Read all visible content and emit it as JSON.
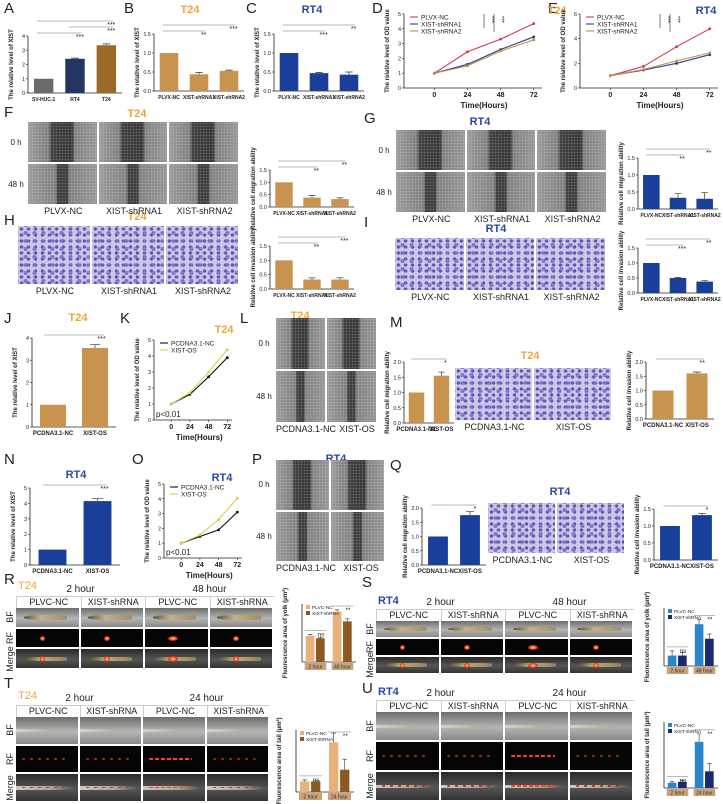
{
  "letters": {
    "A": "A",
    "B": "B",
    "C": "C",
    "D": "D",
    "E": "E",
    "F": "F",
    "G": "G",
    "H": "H",
    "I": "I",
    "J": "J",
    "K": "K",
    "L": "L",
    "M": "M",
    "N": "N",
    "O": "O",
    "P": "P",
    "Q": "Q",
    "R": "R",
    "S": "S",
    "T": "T",
    "U": "U"
  },
  "titles": {
    "B": "T24",
    "C": "RT4",
    "D": "T24",
    "E": "RT4",
    "F": "T24",
    "G": "RT4",
    "H": "T24",
    "I": "RT4",
    "J": "T24",
    "K": "T24",
    "L": "T24",
    "M": "T24",
    "N": "RT4",
    "O": "RT4",
    "P": "RT4",
    "Q": "RT4",
    "R": "T24",
    "S": "RT4",
    "T": "T24",
    "U": "RT4"
  },
  "colors": {
    "t24": "#eda63c",
    "rt4": "#2a48a6"
  },
  "grids": {
    "F": {
      "style": "wound",
      "rows": [
        "0 h",
        "48 h"
      ],
      "cols": [
        "PLVX-NC",
        "XIST-shRNA1",
        "XIST-shRNA2"
      ]
    },
    "G": {
      "style": "wound",
      "rows": [
        "0 h",
        "48 h"
      ],
      "cols": [
        "PLVX-NC",
        "XIST-shRNA1",
        "XIST-shRNA2"
      ]
    },
    "H": {
      "style": "invasion",
      "rows": [
        ""
      ],
      "cols": [
        "PLVX-NC",
        "XIST-shRNA1",
        "XIST-shRNA2"
      ]
    },
    "I": {
      "style": "invasion",
      "rows": [
        ""
      ],
      "cols": [
        "PLVX-NC",
        "XIST-shRNA1",
        "XIST-shRNA2"
      ]
    },
    "L": {
      "style": "wound",
      "rows": [
        "0 h",
        "48 h"
      ],
      "cols": [
        "PCDNA3.1-NC",
        "XIST-OS"
      ]
    },
    "M": {
      "style": "invasion",
      "rows": [
        ""
      ],
      "cols": [
        "PCDNA3.1-NC",
        "XIST-OS"
      ]
    },
    "P": {
      "style": "wound",
      "rows": [
        "0 h",
        "48 h"
      ],
      "cols": [
        "PCDNA3.1-NC",
        "XIST-OS"
      ]
    },
    "Q": {
      "style": "invasion",
      "rows": [
        ""
      ],
      "cols": [
        "PCDNA3.1-NC",
        "XIST-OS"
      ]
    },
    "R": {
      "style": "fish-yolk",
      "groups": [
        "2 hour",
        "48 hour"
      ],
      "cols": [
        "PLVC-NC",
        "XIST-shRNA",
        "PLVC-NC",
        "XIST-shRNA"
      ],
      "rows": [
        "BF",
        "RF",
        "Merge"
      ]
    },
    "S": {
      "style": "fish-yolk",
      "groups": [
        "2 hour",
        "48 hour"
      ],
      "cols": [
        "PLVC-NC",
        "XIST-shRNA",
        "PLVC-NC",
        "XIST-shRNA"
      ],
      "rows": [
        "BF",
        "RF",
        "Merge"
      ]
    },
    "T": {
      "style": "fish-tail",
      "groups": [
        "2 hour",
        "24 hour"
      ],
      "cols": [
        "PLVC-NC",
        "XIST-shRNA",
        "PLVC-NC",
        "XIST-shRNA"
      ],
      "rows": [
        "BF",
        "RF",
        "Merge"
      ]
    },
    "U": {
      "style": "fish-tail",
      "groups": [
        "2 hour",
        "24 hour"
      ],
      "cols": [
        "PLVC-NC",
        "XIST-shRNA",
        "PLVC-NC",
        "XIST-shRNA"
      ],
      "rows": [
        "BF",
        "RF",
        "Merge"
      ]
    }
  },
  "chart_data": [
    {
      "panel": "A",
      "type": "bar",
      "categories": [
        "SV-HUC-1",
        "RT4",
        "T24"
      ],
      "values": [
        1,
        2.4,
        3.35
      ],
      "errors": [
        0,
        0.05,
        0.1
      ],
      "colors": [
        "#6b6b6b",
        "#233562",
        "#9c6a28"
      ],
      "ylabel": "The relative level of XIST",
      "ylim": [
        0,
        4
      ],
      "yticks": [
        "0",
        "1",
        "2",
        "3",
        "4"
      ],
      "sig": [
        {
          "from": 0,
          "to": 1,
          "label": "***"
        },
        {
          "from": 1,
          "to": 2,
          "label": "***"
        },
        {
          "from": 0,
          "to": 2,
          "label": "***"
        }
      ]
    },
    {
      "panel": "B",
      "type": "bar",
      "categories": [
        "PLVX-NC",
        "XIST-shRNA1",
        "XIST-shRNA2"
      ],
      "values": [
        1,
        0.44,
        0.53
      ],
      "errors": [
        0,
        0.05,
        0.02
      ],
      "colors": [
        "#c8924f",
        "#c8924f",
        "#c8924f"
      ],
      "ylabel": "The relative level of XIST",
      "ylim": [
        0,
        1.5
      ],
      "yticks": [
        "0.0",
        "0.5",
        "1.0",
        "1.5"
      ],
      "sig": [
        {
          "from": 0,
          "to": 1,
          "label": "**"
        },
        {
          "from": 0,
          "to": 2,
          "label": "***"
        }
      ]
    },
    {
      "panel": "C",
      "type": "bar",
      "categories": [
        "PLVX-NC",
        "XIST-shRNA1",
        "XIST-shRNA2"
      ],
      "values": [
        1,
        0.47,
        0.43
      ],
      "errors": [
        0,
        0.02,
        0.07
      ],
      "colors": [
        "#1a3f9a",
        "#1a3f9a",
        "#1a3f9a"
      ],
      "ylabel": "The relative level of XIST",
      "ylim": [
        0,
        1.5
      ],
      "yticks": [
        "0.0",
        "0.5",
        "1.0",
        "1.5"
      ],
      "sig": [
        {
          "from": 0,
          "to": 1,
          "label": "***"
        },
        {
          "from": 0,
          "to": 2,
          "label": "**"
        }
      ]
    },
    {
      "panel": "D",
      "type": "line",
      "x": [
        "0",
        "24",
        "48",
        "72"
      ],
      "xlabel": "Time(Hours)",
      "ylabel": "The relative level of OD value",
      "ylim": [
        0,
        5
      ],
      "yticks": [
        "0",
        "1",
        "2",
        "3",
        "4",
        "5"
      ],
      "series": [
        {
          "name": "PLVX-NC",
          "color": "#d3355f",
          "values": [
            1,
            2.45,
            3.3,
            4.35
          ]
        },
        {
          "name": "XIST-shRNA1",
          "color": "#2b3f8f",
          "values": [
            1,
            1.6,
            2.6,
            3.45
          ]
        },
        {
          "name": "XIST-shRNA2",
          "color": "#c0904a",
          "values": [
            1,
            1.5,
            2.5,
            3.25
          ]
        }
      ],
      "sig": [
        "***",
        "***"
      ]
    },
    {
      "panel": "E",
      "type": "line",
      "x": [
        "0",
        "24",
        "48",
        "72"
      ],
      "xlabel": "Time(Hours)",
      "ylabel": "The relative level of OD value",
      "ylim": [
        0,
        6
      ],
      "yticks": [
        "0",
        "2",
        "4",
        "6"
      ],
      "series": [
        {
          "name": "PLVX-NC",
          "color": "#d3355f",
          "values": [
            1,
            1.75,
            3.35,
            4.8
          ]
        },
        {
          "name": "XIST-shRNA1",
          "color": "#2b3f8f",
          "values": [
            1,
            1.45,
            2.0,
            2.7
          ]
        },
        {
          "name": "XIST-shRNA2",
          "color": "#c0904a",
          "values": [
            1,
            1.5,
            2.2,
            2.85
          ]
        }
      ],
      "sig": [
        "***",
        "***"
      ]
    },
    {
      "panel": "F",
      "type": "bar",
      "categories": [
        "PLVX-NC",
        "XIST-shRNA1",
        "XIST-shRNA2"
      ],
      "values": [
        1,
        0.38,
        0.32
      ],
      "errors": [
        0,
        0.08,
        0.05
      ],
      "colors": [
        "#c8924f",
        "#c8924f",
        "#c8924f"
      ],
      "ylabel": "Relative cell migration ability",
      "ylim": [
        0,
        1.5
      ],
      "yticks": [
        "0.0",
        "0.5",
        "1.0",
        "1.5"
      ],
      "sig": [
        {
          "from": 0,
          "to": 1,
          "label": "**"
        },
        {
          "from": 0,
          "to": 2,
          "label": "**"
        }
      ]
    },
    {
      "panel": "G",
      "type": "bar",
      "categories": [
        "PLVX-NC",
        "XIST-shRNA1",
        "XIST-shRNA2"
      ],
      "values": [
        1,
        0.33,
        0.3
      ],
      "errors": [
        0,
        0.12,
        0.18
      ],
      "colors": [
        "#1a3f9a",
        "#1a3f9a",
        "#1a3f9a"
      ],
      "ylabel": "Relative cell migration ability",
      "ylim": [
        0,
        1.5
      ],
      "yticks": [
        "0.0",
        "0.5",
        "1.0",
        "1.5"
      ],
      "sig": [
        {
          "from": 0,
          "to": 1,
          "label": "**"
        },
        {
          "from": 0,
          "to": 2,
          "label": "**"
        }
      ]
    },
    {
      "panel": "H",
      "type": "bar",
      "categories": [
        "PLVX-NC",
        "XIST-shRNA1",
        "XIST-shRNA2"
      ],
      "values": [
        1,
        0.33,
        0.33
      ],
      "errors": [
        0,
        0.06,
        0.06
      ],
      "colors": [
        "#c8924f",
        "#c8924f",
        "#c8924f"
      ],
      "ylabel": "Relative cell invasion ability",
      "ylim": [
        0,
        1.5
      ],
      "yticks": [
        "0.0",
        "0.5",
        "1.0",
        "1.5"
      ],
      "sig": [
        {
          "from": 0,
          "to": 1,
          "label": "**"
        },
        {
          "from": 0,
          "to": 2,
          "label": "***"
        }
      ]
    },
    {
      "panel": "I",
      "type": "bar",
      "categories": [
        "PLVX-NC",
        "XIST-shRNA1",
        "XIST-shRNA2"
      ],
      "values": [
        1,
        0.5,
        0.38
      ],
      "errors": [
        0,
        0.02,
        0.03
      ],
      "colors": [
        "#1a3f9a",
        "#1a3f9a",
        "#1a3f9a"
      ],
      "ylabel": "Relative cell invasion ability",
      "ylim": [
        0,
        1.5
      ],
      "yticks": [
        "0.0",
        "0.5",
        "1.0",
        "1.5"
      ],
      "sig": [
        {
          "from": 0,
          "to": 1,
          "label": "***"
        },
        {
          "from": 0,
          "to": 2,
          "label": "**"
        }
      ]
    },
    {
      "panel": "J",
      "type": "bar",
      "categories": [
        "PCDNA3.1-NC",
        "XIST-OS"
      ],
      "values": [
        1,
        3.55
      ],
      "errors": [
        0,
        0.15
      ],
      "colors": [
        "#c8924f",
        "#c8924f"
      ],
      "ylabel": "The relative level of XIST",
      "ylim": [
        0,
        4
      ],
      "yticks": [
        "0",
        "1",
        "2",
        "3",
        "4"
      ],
      "sig": [
        {
          "from": 0,
          "to": 1,
          "label": "***"
        }
      ]
    },
    {
      "panel": "K",
      "type": "line",
      "x": [
        "0",
        "24",
        "48",
        "72"
      ],
      "xlabel": "Time(Hours)",
      "ylabel": "The relative level of OD value",
      "ylim": [
        0,
        5
      ],
      "yticks": [
        "0",
        "1",
        "2",
        "3",
        "4",
        "5"
      ],
      "series": [
        {
          "name": "PCDNA3.1-NC",
          "color": "#111111",
          "values": [
            1,
            1.6,
            2.7,
            3.9
          ]
        },
        {
          "name": "XIST-OS",
          "color": "#d8cf48",
          "values": [
            1,
            1.7,
            3.0,
            4.4
          ]
        }
      ],
      "annotation": "p<0.01"
    },
    {
      "panel": "L",
      "type": "bar",
      "categories": [
        "PCDNA3.1-NC",
        "XIST-OS"
      ],
      "values": [
        1,
        1.55
      ],
      "errors": [
        0,
        0.12
      ],
      "colors": [
        "#c8924f",
        "#c8924f"
      ],
      "ylabel": "Relative cell migration ability",
      "ylim": [
        0,
        2
      ],
      "yticks": [
        "0.0",
        "0.5",
        "1.0",
        "1.5",
        "2.0"
      ],
      "sig": [
        {
          "from": 0,
          "to": 1,
          "label": "*"
        }
      ]
    },
    {
      "panel": "M",
      "type": "bar",
      "categories": [
        "PCDNA3.1-NC",
        "XIST-OS"
      ],
      "values": [
        1,
        1.6
      ],
      "errors": [
        0,
        0.05
      ],
      "colors": [
        "#c8924f",
        "#c8924f"
      ],
      "ylabel": "Relative cell invasion ability",
      "ylim": [
        0,
        2
      ],
      "yticks": [
        "0.0",
        "0.5",
        "1.0",
        "1.5",
        "2.0"
      ],
      "sig": [
        {
          "from": 0,
          "to": 1,
          "label": "**"
        }
      ]
    },
    {
      "panel": "N",
      "type": "bar",
      "categories": [
        "PCDNA3.1-NC",
        "XIST-OS"
      ],
      "values": [
        1,
        4.15
      ],
      "errors": [
        0,
        0.18
      ],
      "colors": [
        "#1a3f9a",
        "#1a3f9a"
      ],
      "ylabel": "The relative level of XIST",
      "ylim": [
        0,
        5
      ],
      "yticks": [
        "0",
        "1",
        "2",
        "3",
        "4",
        "5"
      ],
      "sig": [
        {
          "from": 0,
          "to": 1,
          "label": "***"
        }
      ]
    },
    {
      "panel": "O",
      "type": "line",
      "x": [
        "0",
        "24",
        "48",
        "72"
      ],
      "xlabel": "Time(Hours)",
      "ylabel": "The relative level of OD value",
      "ylim": [
        0,
        5
      ],
      "yticks": [
        "0",
        "1",
        "2",
        "3",
        "4",
        "5"
      ],
      "series": [
        {
          "name": "PCDNA3.1-NC",
          "color": "#111111",
          "values": [
            1,
            1.45,
            1.9,
            3.1
          ]
        },
        {
          "name": "XIST-OS",
          "color": "#d8cf48",
          "values": [
            1,
            1.55,
            2.6,
            4.05
          ]
        }
      ],
      "annotation": "p<0.01"
    },
    {
      "panel": "P",
      "type": "bar",
      "categories": [
        "PCDNA3.1-NC",
        "XIST-OS"
      ],
      "values": [
        1,
        1.75
      ],
      "errors": [
        0,
        0.12
      ],
      "colors": [
        "#1a3f9a",
        "#1a3f9a"
      ],
      "ylabel": "Relative cell migration ability",
      "ylim": [
        0,
        2
      ],
      "yticks": [
        "0.0",
        "0.5",
        "1.0",
        "1.5",
        "2.0"
      ],
      "sig": [
        {
          "from": 0,
          "to": 1,
          "label": "*"
        }
      ]
    },
    {
      "panel": "Q",
      "type": "bar",
      "categories": [
        "PCDNA3.1-NC",
        "XIST-OS"
      ],
      "values": [
        1,
        1.32
      ],
      "errors": [
        0,
        0.05
      ],
      "colors": [
        "#1a3f9a",
        "#1a3f9a"
      ],
      "ylabel": "Relative cell invasion ability",
      "ylim": [
        0,
        1.5
      ],
      "yticks": [
        "0.0",
        "0.5",
        "1.0",
        "1.5"
      ],
      "sig": [
        {
          "from": 0,
          "to": 1,
          "label": "*"
        }
      ]
    },
    {
      "panel": "R",
      "type": "grouped_bar",
      "groups": [
        "2 hour",
        "48 hour"
      ],
      "ylabel": "Fluorescence area of yolk (μm²)",
      "ylim": [
        0,
        10000
      ],
      "yticks": [],
      "series": [
        {
          "name": "PLVC-NC",
          "color": "#e8b07a",
          "values": [
            4500,
            8700
          ],
          "errors": [
            250,
            300
          ]
        },
        {
          "name": "XIST-shRNA",
          "color": "#8a5a22",
          "values": [
            4100,
            7000
          ],
          "errors": [
            150,
            450
          ]
        }
      ],
      "sig": [
        "ns",
        "**"
      ]
    },
    {
      "panel": "S",
      "type": "grouped_bar",
      "groups": [
        "2 hour",
        "48 hour"
      ],
      "ylabel": "Fluorescence area of yolk (μm²)",
      "ylim": [
        0,
        10000
      ],
      "yticks": [],
      "series": [
        {
          "name": "PLVC-NC",
          "color": "#2a86c8",
          "values": [
            1800,
            7200
          ],
          "errors": [
            800,
            800
          ]
        },
        {
          "name": "XIST-shRNA",
          "color": "#1b2a6e",
          "values": [
            1800,
            4700
          ],
          "errors": [
            500,
            800
          ]
        }
      ],
      "sig": [
        "ns",
        "**"
      ]
    },
    {
      "panel": "T",
      "type": "grouped_bar",
      "groups": [
        "2 hour",
        "24 hour"
      ],
      "ylabel": "Fluorescence area of tail (μm²)",
      "ylim": [
        0,
        10000
      ],
      "yticks": [],
      "series": [
        {
          "name": "PLVC-NC",
          "color": "#e8b07a",
          "values": [
            1700,
            8000
          ],
          "errors": [
            250,
            1500
          ]
        },
        {
          "name": "XIST-shRNA",
          "color": "#8a5a22",
          "values": [
            1700,
            3600
          ],
          "errors": [
            150,
            1700
          ]
        }
      ],
      "sig": [
        "ns",
        "**"
      ]
    },
    {
      "panel": "U",
      "type": "grouped_bar",
      "groups": [
        "2 hour",
        "24 hour"
      ],
      "ylabel": "Fluorescence area of tail (μm²)",
      "ylim": [
        0,
        15000
      ],
      "yticks": [],
      "series": [
        {
          "name": "PLVC-NC",
          "color": "#2a86c8",
          "values": [
            1200,
            10500
          ],
          "errors": [
            300,
            1800
          ]
        },
        {
          "name": "XIST-shRNA",
          "color": "#1b2a6e",
          "values": [
            1400,
            3800
          ],
          "errors": [
            300,
            1800
          ]
        }
      ],
      "sig": [
        "ns",
        "**"
      ]
    }
  ]
}
